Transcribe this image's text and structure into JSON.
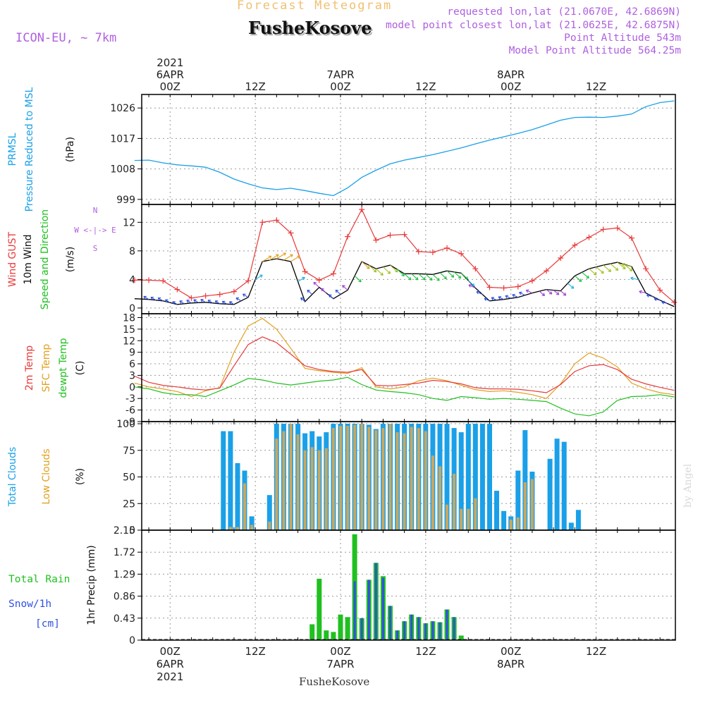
{
  "header": {
    "subtitle": "Forecast Meteogram",
    "title": "FusheKosove",
    "model": "ICON-EU, ~ 7km",
    "requested": "requested lon,lat (21.0670E, 42.6869N)",
    "closest": "model point closest lon,lat (21.0625E, 42.6875N)",
    "altitude": "Point Altitude 543m",
    "model_altitude": "Model Point Altitude 564.25m",
    "footer": "FusheKosove",
    "credit": "by Angel"
  },
  "colors": {
    "pressure": "#1aa0e8",
    "gust": "#e83a3a",
    "wind": "#000000",
    "direction": "#20c020",
    "purple": "#b060e0",
    "sfc": "#e0a020",
    "dewpt": "#20c020",
    "total_clouds": "#1aa0e8",
    "low_clouds": "#c8a860",
    "rain": "#20c020",
    "snow": "#3050e0",
    "subtitle": "#f0c070"
  },
  "time_axis": {
    "top_labels": [
      {
        "t": 0,
        "lines": [
          "2021",
          "6APR",
          "00Z"
        ]
      },
      {
        "t": 12,
        "lines": [
          "12Z"
        ]
      },
      {
        "t": 24,
        "lines": [
          "7APR",
          "00Z"
        ]
      },
      {
        "t": 36,
        "lines": [
          "12Z"
        ]
      },
      {
        "t": 48,
        "lines": [
          "8APR",
          "00Z"
        ]
      },
      {
        "t": 60,
        "lines": [
          "12Z"
        ]
      }
    ],
    "bottom_labels": [
      {
        "t": 0,
        "lines": [
          "00Z",
          "6APR",
          "2021"
        ]
      },
      {
        "t": 12,
        "lines": [
          "12Z"
        ]
      },
      {
        "t": 24,
        "lines": [
          "00Z",
          "7APR"
        ]
      },
      {
        "t": 36,
        "lines": [
          "12Z"
        ]
      },
      {
        "t": 48,
        "lines": [
          "00Z",
          "8APR"
        ]
      },
      {
        "t": 60,
        "lines": [
          "12Z"
        ]
      }
    ]
  },
  "chart_data": [
    {
      "type": "line",
      "panel": "pressure",
      "left_labels": [
        "PRMSL",
        "Pressure Reduced to MSL"
      ],
      "unit": "(hPa)",
      "ylim": [
        997.5,
        1030
      ],
      "yticks": [
        999,
        1008,
        1017,
        1026
      ],
      "x": [
        -5,
        -3,
        -1,
        1,
        3,
        5,
        7,
        9,
        11,
        13,
        15,
        17,
        19,
        21,
        23,
        25,
        27,
        29,
        31,
        33,
        35,
        37,
        39,
        41,
        43,
        45,
        47,
        49,
        51,
        53,
        55,
        57,
        59,
        61,
        63,
        65,
        67,
        69,
        71
      ],
      "series": [
        {
          "name": "PRMSL",
          "values": [
            1010.5,
            1010.6,
            1009.8,
            1009.2,
            1008.9,
            1008.5,
            1007.0,
            1005.0,
            1003.6,
            1002.4,
            1001.9,
            1002.3,
            1001.6,
            1000.8,
            1000.1,
            1002.4,
            1005.5,
            1007.6,
            1009.5,
            1010.6,
            1011.4,
            1012.2,
            1013.2,
            1014.2,
            1015.4,
            1016.5,
            1017.5,
            1018.5,
            1019.6,
            1021.0,
            1022.4,
            1023.2,
            1023.3,
            1023.2,
            1023.6,
            1024.2,
            1026.4,
            1027.6,
            1028.1
          ]
        }
      ]
    },
    {
      "type": "line",
      "panel": "wind",
      "left_labels": [
        "Wind GUST",
        "10m Wind",
        "Speed and Direction"
      ],
      "unit": "(m/s)",
      "compass": [
        "N",
        "W <-|-> E",
        "S"
      ],
      "ylim": [
        -0.8,
        14.5
      ],
      "yticks": [
        0,
        4,
        8,
        12
      ],
      "x": [
        -5,
        -3,
        -1,
        1,
        3,
        5,
        7,
        9,
        11,
        13,
        15,
        17,
        19,
        21,
        23,
        25,
        27,
        29,
        31,
        33,
        35,
        37,
        39,
        41,
        43,
        45,
        47,
        49,
        51,
        53,
        55,
        57,
        59,
        61,
        63,
        65,
        67,
        69,
        71
      ],
      "series": [
        {
          "name": "Wind GUST",
          "values": [
            3.9,
            3.9,
            3.8,
            2.6,
            1.4,
            1.7,
            1.9,
            2.3,
            3.8,
            12.0,
            12.3,
            10.5,
            5.1,
            3.9,
            4.8,
            10.0,
            13.8,
            9.5,
            10.2,
            10.3,
            7.9,
            7.8,
            8.4,
            7.6,
            5.5,
            2.9,
            2.8,
            3.0,
            3.8,
            5.2,
            7.0,
            8.8,
            9.9,
            11.0,
            11.2,
            9.8,
            5.5,
            2.5,
            0.8
          ]
        },
        {
          "name": "10m Wind",
          "values": [
            1.3,
            1.2,
            1.0,
            0.5,
            0.7,
            0.8,
            0.6,
            0.5,
            1.5,
            6.5,
            6.9,
            6.5,
            0.9,
            2.9,
            1.3,
            2.5,
            6.5,
            5.5,
            6.0,
            4.8,
            4.8,
            4.7,
            5.2,
            4.9,
            2.8,
            1.0,
            1.2,
            1.5,
            2.1,
            2.6,
            2.4,
            4.5,
            5.5,
            6.0,
            6.4,
            5.8,
            2.1,
            1.1,
            0.2
          ]
        }
      ]
    },
    {
      "type": "line",
      "panel": "temperature",
      "left_labels": [
        "2m Temp",
        "SFC Temp",
        "dewpt Temp"
      ],
      "unit": "(C)",
      "ylim": [
        -9,
        19
      ],
      "yticks": [
        -9,
        -6,
        -3,
        0,
        3,
        6,
        9,
        12,
        15,
        18
      ],
      "x": [
        -5,
        -3,
        -1,
        1,
        3,
        5,
        7,
        9,
        11,
        13,
        15,
        17,
        19,
        21,
        23,
        25,
        27,
        29,
        31,
        33,
        35,
        37,
        39,
        41,
        43,
        45,
        47,
        49,
        51,
        53,
        55,
        57,
        59,
        61,
        63,
        65,
        67,
        69,
        71
      ],
      "series": [
        {
          "name": "2m Temp",
          "values": [
            2.8,
            1.2,
            0.4,
            0.0,
            -0.5,
            -0.8,
            -0.3,
            5.5,
            11.0,
            13.0,
            11.5,
            8.5,
            5.5,
            4.5,
            4.0,
            3.8,
            4.5,
            0.4,
            0.3,
            0.6,
            1.0,
            1.7,
            1.4,
            0.8,
            -0.2,
            -0.5,
            -0.5,
            -0.6,
            -1.0,
            -1.5,
            0.6,
            4.0,
            5.5,
            5.8,
            4.5,
            2.0,
            0.8,
            -0.1,
            -0.9
          ]
        },
        {
          "name": "SFC Temp",
          "values": [
            1.0,
            0.0,
            -0.5,
            -1.2,
            -2.5,
            -1.0,
            -0.2,
            9.0,
            15.8,
            17.8,
            15.0,
            10.0,
            4.8,
            4.2,
            3.8,
            3.5,
            5.0,
            0.0,
            -0.5,
            0.0,
            1.6,
            2.3,
            1.6,
            0.4,
            -0.7,
            -1.2,
            -1.0,
            -1.4,
            -2.0,
            -3.0,
            0.8,
            6.0,
            8.8,
            7.5,
            5.2,
            1.0,
            -0.5,
            -1.5,
            -2.0
          ]
        },
        {
          "name": "dewpt Temp",
          "values": [
            0.0,
            -0.5,
            -1.5,
            -2.0,
            -2.0,
            -2.5,
            -1.0,
            0.5,
            2.2,
            1.8,
            1.0,
            0.5,
            1.0,
            1.5,
            1.8,
            2.5,
            0.6,
            -0.8,
            -1.2,
            -1.5,
            -2.0,
            -3.0,
            -3.5,
            -2.5,
            -2.8,
            -3.2,
            -3.0,
            -3.2,
            -3.5,
            -3.8,
            -5.5,
            -7.0,
            -7.5,
            -6.5,
            -3.5,
            -2.5,
            -2.4,
            -2.0,
            -2.6
          ]
        }
      ]
    },
    {
      "type": "bar",
      "panel": "clouds",
      "left_labels": [
        "Total Clouds",
        "Low Clouds"
      ],
      "unit": "(%)",
      "ylim": [
        0,
        102
      ],
      "yticks": [
        0,
        25,
        50,
        75,
        100
      ],
      "x": [
        7.5,
        8.5,
        9.5,
        10.5,
        11.5,
        14,
        15,
        16,
        17,
        18,
        19,
        20,
        21,
        22,
        23,
        24,
        25,
        26,
        27,
        28,
        29,
        30,
        31,
        32,
        33,
        34,
        35,
        36,
        37,
        38,
        39,
        40,
        41,
        42,
        43,
        44,
        45,
        46,
        47,
        48,
        49,
        50,
        51,
        53.5,
        54.5,
        55.5,
        56.5,
        57.5,
        58.5,
        59.5,
        60.5
      ],
      "series": [
        {
          "name": "Total Clouds",
          "values": [
            93,
            93,
            63,
            56,
            13,
            33,
            100,
            100,
            100,
            100,
            91,
            93,
            88,
            92,
            100,
            100,
            100,
            100,
            100,
            99,
            95,
            100,
            100,
            100,
            100,
            100,
            100,
            100,
            100,
            100,
            100,
            96,
            92,
            100,
            100,
            100,
            100,
            37,
            18,
            13,
            56,
            94,
            55,
            67,
            86,
            83,
            7,
            19,
            0,
            0,
            0
          ]
        },
        {
          "name": "Low Clouds",
          "values": [
            0,
            3,
            3,
            44,
            5,
            8,
            86,
            93,
            100,
            90,
            75,
            78,
            75,
            77,
            96,
            98,
            98,
            99,
            100,
            97,
            94,
            96,
            100,
            92,
            91,
            97,
            96,
            93,
            70,
            60,
            24,
            53,
            20,
            20,
            30,
            0,
            0,
            0,
            0,
            10,
            12,
            45,
            48,
            0,
            0,
            0,
            0,
            0,
            0,
            0,
            0
          ]
        }
      ]
    },
    {
      "type": "bar",
      "panel": "precip",
      "left_labels": [
        "Total  Rain",
        "Snow/1h",
        "[cm]"
      ],
      "unit": "1hr Precip (mm)",
      "ylim": [
        0,
        2.15
      ],
      "yticks": [
        "0",
        "0.43",
        "0.86",
        "1.29",
        "1.72",
        "2.15"
      ],
      "x": [
        20,
        21,
        22,
        23,
        24,
        25,
        26,
        27,
        28,
        29,
        30,
        31,
        32,
        33,
        34,
        35,
        36,
        37,
        38,
        39,
        40,
        41,
        42
      ],
      "series": [
        {
          "name": "Total Rain",
          "values": [
            0.31,
            1.2,
            0.19,
            0.16,
            0.5,
            0.45,
            2.07,
            0.43,
            1.18,
            1.51,
            1.25,
            0.67,
            0.19,
            0.37,
            0.5,
            0.45,
            0.33,
            0.37,
            0.35,
            0.6,
            0.45,
            0.09,
            0.0
          ]
        },
        {
          "name": "Snow/1h",
          "values": [
            0,
            0,
            0,
            0,
            0,
            0,
            1.15,
            0.43,
            1.18,
            1.51,
            1.22,
            0.67,
            0.19,
            0.37,
            0.5,
            0.45,
            0.33,
            0.37,
            0.35,
            0.6,
            0.45,
            0,
            0
          ]
        }
      ]
    }
  ]
}
